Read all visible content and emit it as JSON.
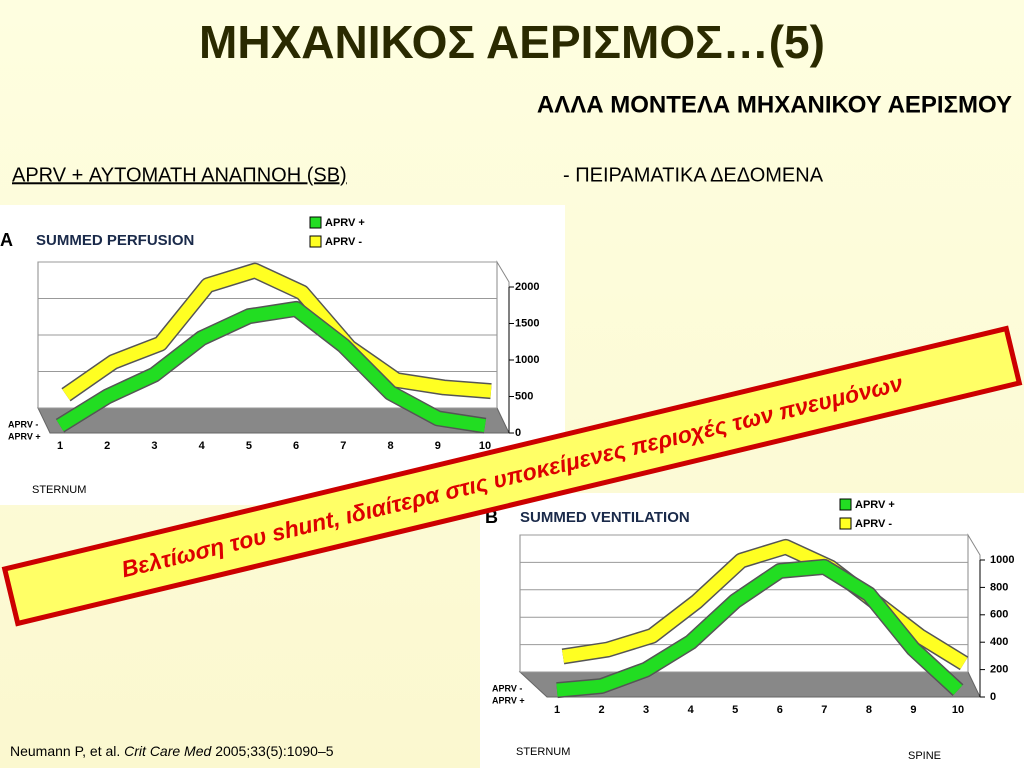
{
  "slide": {
    "title": "ΜΗΧΑΝΙΚΟΣ ΑΕΡΙΣΜΟΣ…(5)",
    "subtitle": "ΑΛΛΑ ΜΟΝΤΕΛΑ ΜΗΧΑΝΙΚΟΥ ΑΕΡΙΣΜΟΥ",
    "heading_underlined": "APRV + ΑΥΤΟΜΑΤΗ ΑΝΑΠΝΟΗ (SB)",
    "heading_rest": "- ΠΕΙΡΑΜΑΤΙΚΑ ΔΕΔΟΜΕΝΑ",
    "banner": "Βελτίωση του shunt, ιδιαίτερα στις υποκείμενες περιοχές των πνευμόνων"
  },
  "citation": {
    "authors": "Neumann P, et al.",
    "journal": "Crit Care Med",
    "details": "2005;33(5):1090–5"
  },
  "chart_data": [
    {
      "type": "line",
      "label": "A",
      "title": "SUMMED PERFUSION",
      "categories": [
        "1",
        "2",
        "3",
        "4",
        "5",
        "6",
        "7",
        "8",
        "9",
        "10"
      ],
      "series": [
        {
          "name": "APRV +",
          "color": "#22dd22",
          "values": [
            100,
            500,
            800,
            1300,
            1600,
            1700,
            1200,
            550,
            200,
            100
          ]
        },
        {
          "name": "APRV -",
          "color": "#ffff22",
          "values": [
            250,
            700,
            950,
            1750,
            1950,
            1650,
            900,
            450,
            350,
            300
          ]
        }
      ],
      "ylim": [
        0,
        2000
      ],
      "yticks": [
        0,
        500,
        1000,
        1500,
        2000
      ],
      "grid": true,
      "x_labels": [
        "STERNUM"
      ]
    },
    {
      "type": "line",
      "label": "B",
      "title": "SUMMED VENTILATION",
      "categories": [
        "1",
        "2",
        "3",
        "4",
        "5",
        "6",
        "7",
        "8",
        "9",
        "10"
      ],
      "series": [
        {
          "name": "APRV +",
          "color": "#22dd22",
          "values": [
            50,
            80,
            200,
            400,
            700,
            920,
            950,
            750,
            350,
            50
          ]
        },
        {
          "name": "APRV -",
          "color": "#ffff22",
          "values": [
            150,
            200,
            300,
            550,
            850,
            950,
            800,
            550,
            300,
            100
          ]
        }
      ],
      "ylim": [
        0,
        1000
      ],
      "yticks": [
        0,
        200,
        400,
        600,
        800,
        1000
      ],
      "grid": true,
      "x_labels": [
        "STERNUM",
        "SPINE"
      ]
    }
  ]
}
